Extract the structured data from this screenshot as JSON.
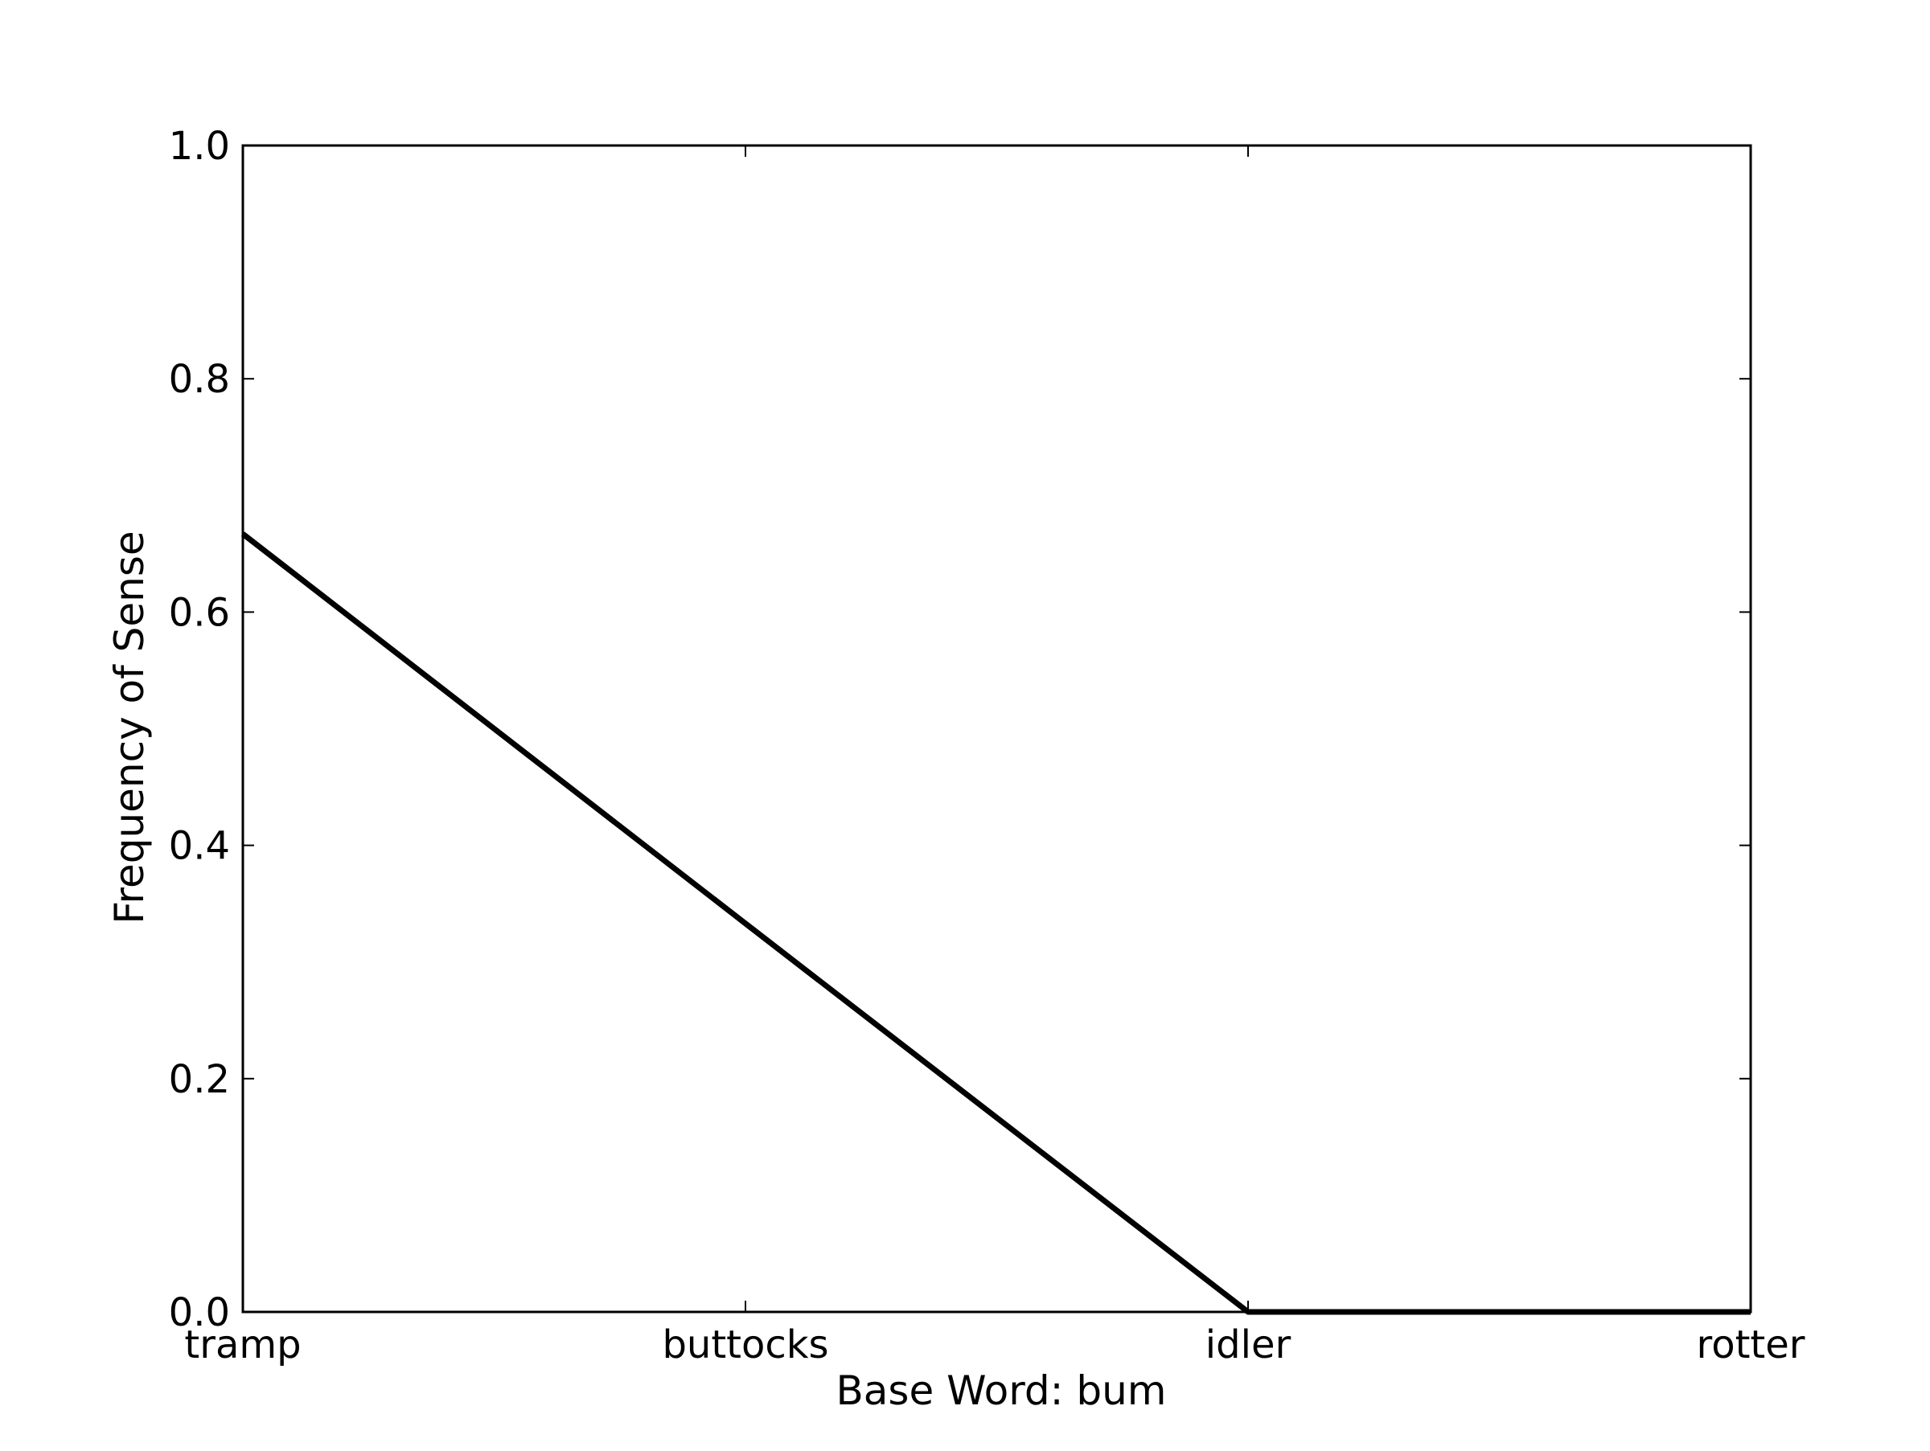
{
  "chart_data": {
    "type": "line",
    "categories": [
      "tramp",
      "buttocks",
      "idler",
      "rotter"
    ],
    "series": [
      {
        "values": [
          0.667,
          0.333,
          0.0,
          0.0
        ],
        "color": "#000000"
      }
    ],
    "xlabel": "Base Word: bum",
    "ylabel": "Frequency of Sense",
    "ylim": [
      0,
      1.0
    ],
    "yticks": [
      "0.0",
      "0.2",
      "0.4",
      "0.6",
      "0.8",
      "1.0"
    ],
    "grid": false,
    "legend": "none"
  }
}
